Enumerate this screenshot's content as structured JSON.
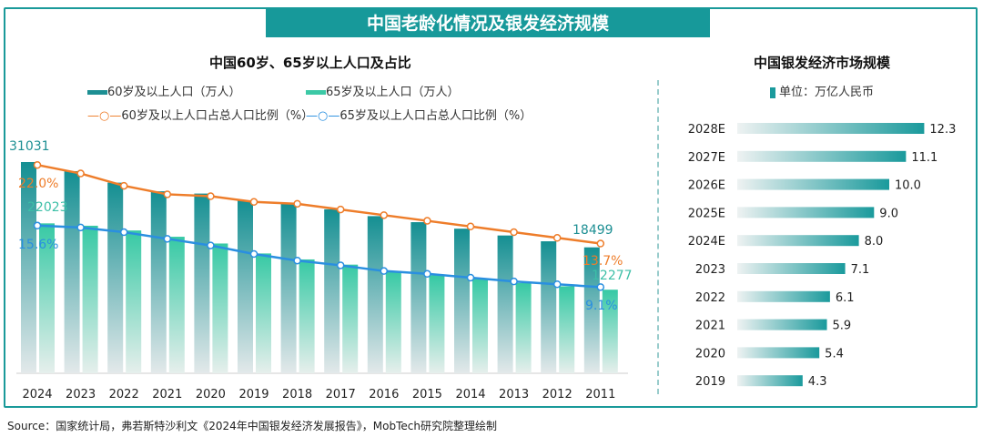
{
  "banner_title": "中国老龄化情况及银发经济规模",
  "source": "Source：国家统计局，弗若斯特沙利文《2024年中国银发经济发展报告》，MobTech研究院整理绘制",
  "colors": {
    "teal": "#17999a",
    "bar60": "#1d8f93",
    "bar65": "#3cc9a6",
    "orange": "#ee7d2a",
    "blue": "#2a8fe0"
  },
  "chart_data": [
    {
      "type": "bar+line",
      "title": "中国60岁、65岁以上人口及占比",
      "categories": [
        "2024",
        "2023",
        "2022",
        "2021",
        "2020",
        "2019",
        "2018",
        "2017",
        "2016",
        "2015",
        "2014",
        "2013",
        "2012",
        "2011"
      ],
      "series": [
        {
          "name": "60岁及以上人口（万人）",
          "type": "bar",
          "values": [
            31031,
            29697,
            28004,
            26736,
            26402,
            25388,
            24949,
            24090,
            23086,
            22200,
            21242,
            20243,
            19390,
            18499
          ]
        },
        {
          "name": "65岁及以上人口（万人）",
          "type": "bar",
          "values": [
            22023,
            21676,
            20978,
            20056,
            19064,
            17603,
            16724,
            15961,
            15037,
            14386,
            13902,
            13262,
            12777,
            12277
          ]
        },
        {
          "name": "60岁及以上人口占总人口比例（%）",
          "type": "line",
          "values": [
            22.0,
            21.1,
            19.8,
            18.9,
            18.7,
            18.1,
            17.9,
            17.3,
            16.7,
            16.1,
            15.5,
            14.9,
            14.3,
            13.7
          ]
        },
        {
          "name": "65岁及以上人口占总人口比例（%）",
          "type": "line",
          "values": [
            15.6,
            15.4,
            14.9,
            14.2,
            13.5,
            12.6,
            11.9,
            11.4,
            10.8,
            10.5,
            10.1,
            9.7,
            9.4,
            9.1
          ]
        }
      ],
      "data_labels": {
        "bar60_first": "31031",
        "bar60_last": "18499",
        "bar65_first": "22023",
        "bar65_last": "12277",
        "line60_first": "22.0%",
        "line60_last": "13.7%",
        "line65_first": "15.6%",
        "line65_last": "9.1%"
      },
      "legend": "top"
    },
    {
      "type": "bar",
      "orientation": "horizontal",
      "title": "中国银发经济市场规模",
      "unit_label": "单位：万亿人民币",
      "categories": [
        "2028E",
        "2027E",
        "2026E",
        "2025E",
        "2024E",
        "2023",
        "2022",
        "2021",
        "2020",
        "2019"
      ],
      "values": [
        12.3,
        11.1,
        10.0,
        9.0,
        8.0,
        7.1,
        6.1,
        5.9,
        5.4,
        4.3
      ]
    }
  ]
}
